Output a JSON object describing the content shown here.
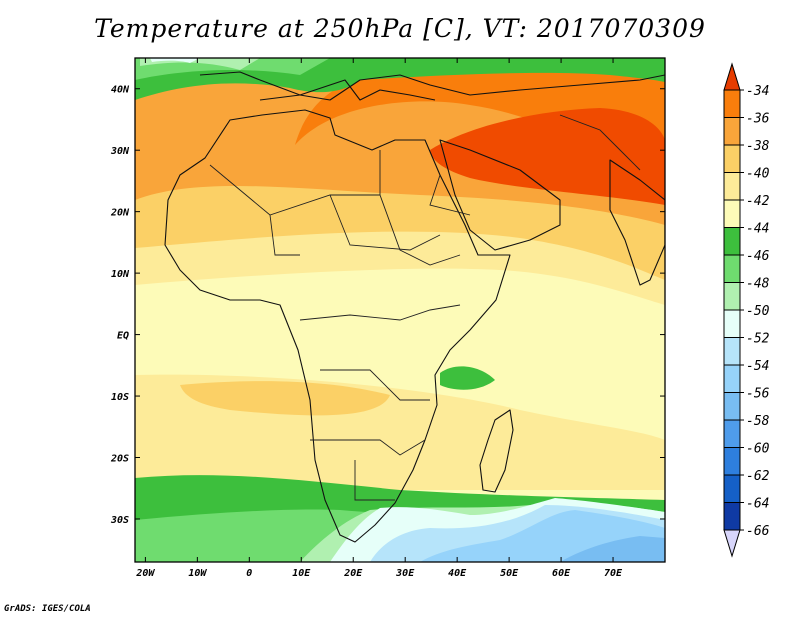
{
  "title": "Temperature at 250hPa [C], VT: 2017070309",
  "credit": "GrADS: IGES/COLA",
  "map": {
    "lon_range": [
      -22,
      80
    ],
    "lat_range": [
      -37,
      45
    ],
    "lat_ticks": [
      {
        "value": 40,
        "label": "40N"
      },
      {
        "value": 30,
        "label": "30N"
      },
      {
        "value": 20,
        "label": "20N"
      },
      {
        "value": 10,
        "label": "10N"
      },
      {
        "value": 0,
        "label": "EQ"
      },
      {
        "value": -10,
        "label": "10S"
      },
      {
        "value": -20,
        "label": "20S"
      },
      {
        "value": -30,
        "label": "30S"
      }
    ],
    "lon_ticks": [
      {
        "value": -20,
        "label": "20W"
      },
      {
        "value": -10,
        "label": "10W"
      },
      {
        "value": 0,
        "label": "0"
      },
      {
        "value": 10,
        "label": "10E"
      },
      {
        "value": 20,
        "label": "20E"
      },
      {
        "value": 30,
        "label": "30E"
      },
      {
        "value": 40,
        "label": "40E"
      },
      {
        "value": 50,
        "label": "50E"
      },
      {
        "value": 60,
        "label": "60E"
      },
      {
        "value": 70,
        "label": "70E"
      }
    ]
  },
  "colorbar": {
    "levels": [
      {
        "label": "-34",
        "color": "#f04b00"
      },
      {
        "label": "-36",
        "color": "#f97e0c"
      },
      {
        "label": "-38",
        "color": "#f9a53a"
      },
      {
        "label": "-40",
        "color": "#fbd066"
      },
      {
        "label": "-42",
        "color": "#fdeb99"
      },
      {
        "label": "-44",
        "color": "#fdfbb8"
      },
      {
        "label": "-46",
        "color": "#3dbf3d"
      },
      {
        "label": "-48",
        "color": "#6fdc6f"
      },
      {
        "label": "-50",
        "color": "#b0f0b0"
      },
      {
        "label": "-52",
        "color": "#e6fff9"
      },
      {
        "label": "-54",
        "color": "#b6e4fa"
      },
      {
        "label": "-56",
        "color": "#96d3fa"
      },
      {
        "label": "-58",
        "color": "#78bdf2"
      },
      {
        "label": "-60",
        "color": "#4f9ceb"
      },
      {
        "label": "-62",
        "color": "#2e7fde"
      },
      {
        "label": "-64",
        "color": "#1560c7"
      },
      {
        "label": "-66",
        "color": "#0f3aa4"
      }
    ],
    "top_arrow_color": "#e63c00",
    "bottom_arrow_color": "#d8d6fb",
    "extra_color": "#0c1a7a"
  }
}
